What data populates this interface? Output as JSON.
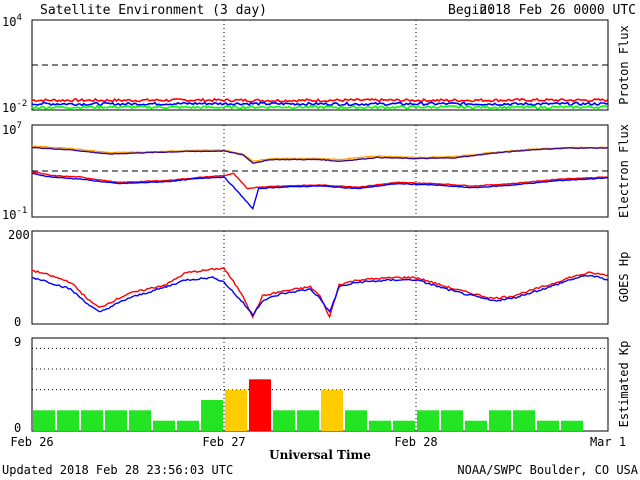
{
  "header": {
    "title": "Satellite Environment (3 day)",
    "begin_label": "Begin:",
    "begin_value": "2018 Feb 26 0000 UTC"
  },
  "footer": {
    "updated": "Updated 2018 Feb 28 23:56:03 UTC",
    "credit": "NOAA/SWPC Boulder, CO USA"
  },
  "x_axis": {
    "label": "Universal Time",
    "ticks": [
      "Feb 26",
      "Feb 27",
      "Feb 28",
      "Mar 1"
    ]
  },
  "colors": {
    "red": "#ff0000",
    "blue": "#0000ff",
    "green": "#00ff00",
    "orange": "#ffa500",
    "purple": "#3a0a8c",
    "kp_quiet": "#22e422",
    "kp_active": "#ffcc00",
    "kp_storm": "#ff0000"
  },
  "chart_data": [
    {
      "type": "line",
      "panel": "proton",
      "ylabel": "Proton Flux",
      "yscale": "log",
      "ylim": [
        0.01,
        10000
      ],
      "ytick_labels": [
        {
          "base": "10",
          "exp": "4"
        },
        {
          "base": "10",
          "exp": "-2"
        }
      ],
      "threshold": 10,
      "xlim_days": [
        0,
        3
      ],
      "series": [
        {
          "color": "red",
          "values": [
            0.045,
            0.044,
            0.046,
            0.043,
            0.045,
            0.044,
            0.046,
            0.045
          ]
        },
        {
          "color": "blue",
          "values": [
            0.026,
            0.025,
            0.027,
            0.026,
            0.025,
            0.026,
            0.025,
            0.026
          ]
        },
        {
          "color": "green",
          "values": [
            0.015,
            0.016,
            0.015,
            0.016,
            0.015,
            0.016,
            0.015,
            0.016
          ]
        }
      ]
    },
    {
      "type": "line",
      "panel": "electron",
      "ylabel": "Electron Flux",
      "yscale": "log",
      "ylim": [
        0.1,
        10000000
      ],
      "ytick_labels": [
        {
          "base": "10",
          "exp": "7"
        },
        {
          "base": "10",
          "exp": "-1"
        }
      ],
      "threshold": 1000,
      "xlim_days": [
        0,
        3
      ],
      "series": [
        {
          "color": "orange",
          "x": [
            0,
            0.2,
            0.4,
            0.6,
            0.8,
            1.0,
            1.1,
            1.15,
            1.25,
            1.5,
            1.6,
            1.8,
            2.0,
            2.2,
            2.4,
            2.6,
            2.8,
            3.0
          ],
          "values": [
            150000,
            90000,
            40000,
            45000,
            60000,
            65000,
            30000,
            7000,
            12000,
            12000,
            10000,
            20000,
            15000,
            18000,
            40000,
            80000,
            110000,
            110000
          ]
        },
        {
          "color": "purple",
          "x": [
            0,
            0.2,
            0.4,
            0.6,
            0.8,
            1.0,
            1.1,
            1.15,
            1.25,
            1.5,
            1.6,
            1.8,
            2.0,
            2.2,
            2.4,
            2.6,
            2.8,
            3.0
          ],
          "values": [
            110000,
            70000,
            30000,
            40000,
            50000,
            55000,
            25000,
            5000,
            10000,
            10000,
            7000,
            15000,
            12000,
            14000,
            35000,
            70000,
            100000,
            100000
          ]
        },
        {
          "color": "red",
          "x": [
            0,
            0.1,
            0.25,
            0.45,
            0.7,
            0.9,
            1.0,
            1.05,
            1.12,
            1.18,
            1.3,
            1.5,
            1.7,
            1.9,
            2.1,
            2.3,
            2.5,
            2.75,
            3.0
          ],
          "values": [
            900,
            400,
            300,
            100,
            150,
            300,
            400,
            600,
            30,
            40,
            50,
            60,
            40,
            100,
            80,
            50,
            80,
            200,
            300
          ]
        },
        {
          "color": "blue",
          "x": [
            0,
            0.1,
            0.25,
            0.45,
            0.7,
            0.9,
            1.0,
            1.05,
            1.12,
            1.15,
            1.18,
            1.3,
            1.5,
            1.7,
            1.9,
            2.1,
            2.3,
            2.5,
            2.75,
            3.0
          ],
          "values": [
            600,
            300,
            200,
            80,
            120,
            250,
            300,
            40,
            2,
            0.5,
            30,
            40,
            50,
            30,
            80,
            60,
            35,
            60,
            150,
            250
          ]
        }
      ]
    },
    {
      "type": "line",
      "panel": "goes_hp",
      "ylabel": "GOES Hp",
      "ylim": [
        0,
        200
      ],
      "ytick_labels": [
        "200",
        "0"
      ],
      "xlim_days": [
        0,
        3
      ],
      "series": [
        {
          "color": "red",
          "x": [
            0,
            0.05,
            0.2,
            0.3,
            0.35,
            0.5,
            0.7,
            0.8,
            0.95,
            1.0,
            1.1,
            1.15,
            1.2,
            1.3,
            1.45,
            1.5,
            1.55,
            1.6,
            1.7,
            1.9,
            2.0,
            2.2,
            2.4,
            2.5,
            2.7,
            2.8,
            2.9,
            3.0
          ],
          "values": [
            115,
            110,
            90,
            50,
            35,
            65,
            85,
            110,
            118,
            120,
            60,
            15,
            60,
            70,
            80,
            60,
            15,
            85,
            95,
            100,
            100,
            75,
            55,
            60,
            85,
            100,
            110,
            105
          ]
        },
        {
          "color": "blue",
          "x": [
            0,
            0.05,
            0.2,
            0.3,
            0.35,
            0.5,
            0.7,
            0.8,
            0.95,
            1.0,
            1.1,
            1.15,
            1.2,
            1.3,
            1.45,
            1.5,
            1.55,
            1.6,
            1.7,
            1.9,
            2.0,
            2.2,
            2.4,
            2.5,
            2.7,
            2.8,
            2.9,
            3.0
          ],
          "values": [
            100,
            95,
            75,
            40,
            25,
            55,
            80,
            95,
            100,
            90,
            45,
            20,
            50,
            65,
            75,
            55,
            25,
            80,
            90,
            95,
            95,
            70,
            50,
            55,
            80,
            95,
            105,
            95
          ]
        }
      ]
    },
    {
      "type": "bar",
      "panel": "kp",
      "ylabel": "Estimated Kp",
      "ylim": [
        0,
        9
      ],
      "ytick_labels": [
        "9",
        "0"
      ],
      "dotted_levels": [
        4,
        6,
        8
      ],
      "bar_width_hours": 3,
      "values": [
        2,
        2,
        2,
        2,
        2,
        1,
        1,
        3,
        4,
        5,
        2,
        2,
        4,
        2,
        1,
        1,
        2,
        2,
        1,
        2,
        2,
        1,
        1,
        0
      ],
      "bar_colors": [
        "kp_quiet",
        "kp_quiet",
        "kp_quiet",
        "kp_quiet",
        "kp_quiet",
        "kp_quiet",
        "kp_quiet",
        "kp_quiet",
        "kp_active",
        "kp_storm",
        "kp_quiet",
        "kp_quiet",
        "kp_active",
        "kp_quiet",
        "kp_quiet",
        "kp_quiet",
        "kp_quiet",
        "kp_quiet",
        "kp_quiet",
        "kp_quiet",
        "kp_quiet",
        "kp_quiet",
        "kp_quiet",
        "kp_quiet"
      ]
    }
  ]
}
